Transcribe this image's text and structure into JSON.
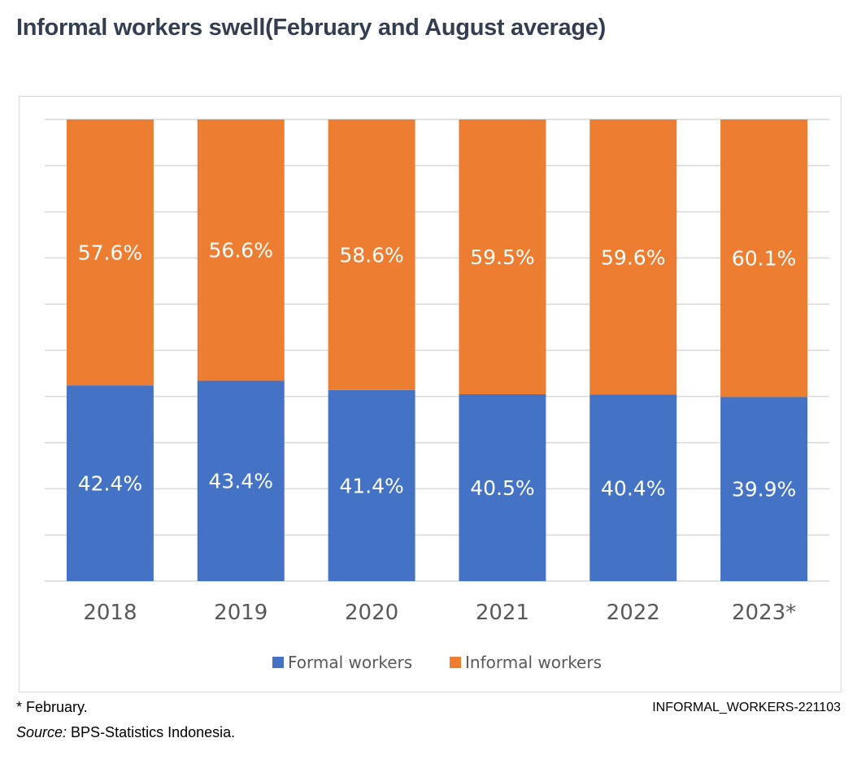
{
  "title": "Informal workers swell(February and August average)",
  "footnote": "* February.",
  "source_label": "Source:",
  "source_text": " BPS-Statistics Indonesia.",
  "chart_code": "INFORMAL_WORKERS-221103",
  "colors": {
    "formal": "#4472c4",
    "informal": "#ed7d31",
    "grid": "#d9d9d9",
    "axis_text": "#595959"
  },
  "chart_data": {
    "type": "bar",
    "stacked": true,
    "title": "Informal workers swell(February and August average)",
    "xlabel": "",
    "ylabel": "",
    "ylim": [
      0,
      100
    ],
    "grid": true,
    "legend_position": "bottom",
    "categories": [
      "2018",
      "2019",
      "2020",
      "2021",
      "2022",
      "2023*"
    ],
    "series": [
      {
        "name": "Formal workers",
        "values": [
          42.4,
          43.4,
          41.4,
          40.5,
          40.4,
          39.9
        ],
        "labels": [
          "42.4%",
          "43.4%",
          "41.4%",
          "40.5%",
          "40.4%",
          "39.9%"
        ]
      },
      {
        "name": "Informal workers",
        "values": [
          57.6,
          56.6,
          58.6,
          59.5,
          59.6,
          60.1
        ],
        "labels": [
          "57.6%",
          "56.6%",
          "58.6%",
          "59.5%",
          "59.6%",
          "60.1%"
        ]
      }
    ]
  }
}
